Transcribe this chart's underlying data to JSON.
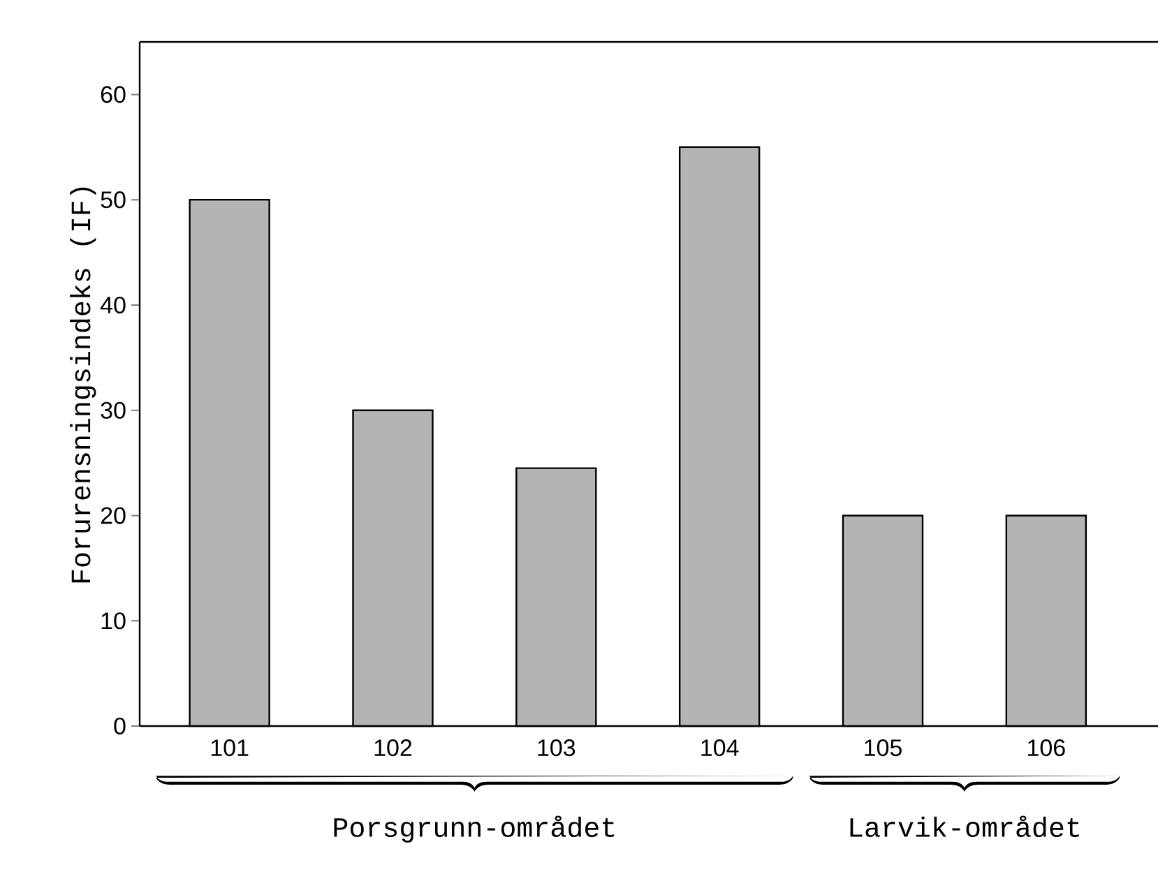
{
  "chart_data": {
    "type": "bar",
    "ylabel": "Forurensningsindeks (IF)",
    "categories": [
      "101",
      "102",
      "103",
      "104",
      "105",
      "106"
    ],
    "values": [
      50,
      30,
      24.5,
      55,
      20,
      20
    ],
    "color": "#b4b4b4",
    "ylim": [
      0,
      65
    ],
    "yticks": [
      0,
      10,
      20,
      30,
      40,
      50,
      60
    ],
    "annotations": [
      "Porsgrunn-området",
      "Larvik-området"
    ],
    "grid": false
  }
}
